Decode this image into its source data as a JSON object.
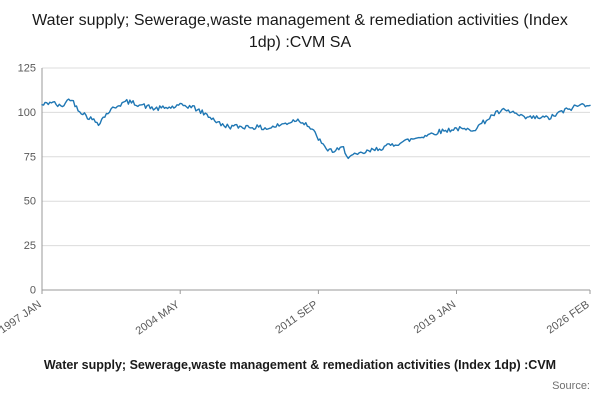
{
  "title": "Water supply; Sewerage,waste management & remediation activities (Index 1dp) :CVM SA",
  "footer": {
    "legend": "Water supply; Sewerage,waste management & remediation activities (Index 1dp) :CVM",
    "source_label": "Source:"
  },
  "chart_data": {
    "type": "line",
    "series_name": "Water supply; Sewerage, waste management & remediation activities (Index 1dp) CVM SA",
    "title": "Water supply; Sewerage,waste management & remediation activities (Index 1dp) :CVM SA",
    "xlabel": "",
    "ylabel": "",
    "ylim": [
      0,
      125
    ],
    "y_ticks": [
      0,
      25,
      50,
      75,
      100,
      125
    ],
    "x_ticks": [
      {
        "label": "1997 JAN",
        "month": 0
      },
      {
        "label": "2004 MAY",
        "month": 88
      },
      {
        "label": "2011 SEP",
        "month": 176
      },
      {
        "label": "2019 JAN",
        "month": 264
      },
      {
        "label": "2026 FEB",
        "month": 349
      }
    ],
    "total_months": 349,
    "grid": true,
    "legend_position": "bottom",
    "line_color": "#1f77b4",
    "grid_color": "#dcdcdc",
    "axis_color": "#9a9a9a",
    "tick_label_color": "#595959",
    "anchors": [
      [
        0,
        104
      ],
      [
        6,
        106
      ],
      [
        12,
        103
      ],
      [
        18,
        108
      ],
      [
        24,
        101
      ],
      [
        30,
        97
      ],
      [
        36,
        94
      ],
      [
        42,
        100
      ],
      [
        48,
        104
      ],
      [
        54,
        106
      ],
      [
        60,
        105
      ],
      [
        72,
        102
      ],
      [
        84,
        103
      ],
      [
        90,
        104
      ],
      [
        96,
        103
      ],
      [
        102,
        100
      ],
      [
        108,
        97
      ],
      [
        114,
        93
      ],
      [
        120,
        92
      ],
      [
        132,
        92
      ],
      [
        144,
        91
      ],
      [
        156,
        94
      ],
      [
        162,
        96
      ],
      [
        168,
        94
      ],
      [
        174,
        88
      ],
      [
        177,
        84
      ],
      [
        180,
        80
      ],
      [
        186,
        78
      ],
      [
        192,
        80
      ],
      [
        195,
        75
      ],
      [
        201,
        76
      ],
      [
        204,
        77
      ],
      [
        216,
        80
      ],
      [
        228,
        83
      ],
      [
        240,
        86
      ],
      [
        252,
        89
      ],
      [
        264,
        91
      ],
      [
        270,
        90
      ],
      [
        276,
        91
      ],
      [
        288,
        99
      ],
      [
        294,
        101
      ],
      [
        300,
        100
      ],
      [
        306,
        97
      ],
      [
        312,
        97
      ],
      [
        324,
        97
      ],
      [
        330,
        100
      ],
      [
        336,
        102
      ],
      [
        342,
        104
      ],
      [
        349,
        105
      ]
    ],
    "noise_amplitude": 1.4,
    "noise_seed": 42
  }
}
